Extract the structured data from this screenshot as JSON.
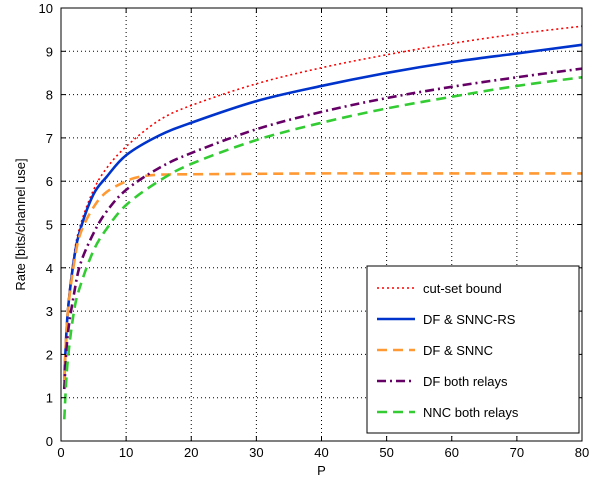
{
  "chart_data": {
    "type": "line",
    "title": "",
    "xlabel": "P",
    "ylabel": "Rate [bits/channel use]",
    "xlim": [
      0,
      80
    ],
    "ylim": [
      0,
      10
    ],
    "xticks": [
      "0",
      "10",
      "20",
      "30",
      "40",
      "50",
      "60",
      "70",
      "80"
    ],
    "yticks": [
      "0",
      "1",
      "2",
      "3",
      "4",
      "5",
      "6",
      "7",
      "8",
      "9",
      "10"
    ],
    "grid": true,
    "legend_position": "lower-right",
    "series": [
      {
        "name": "cut-set bound",
        "color": "#ff0000",
        "style": "dotted",
        "x": [
          0.5,
          1,
          2,
          3,
          5,
          7,
          10,
          15,
          20,
          30,
          40,
          50,
          60,
          70,
          80
        ],
        "y": [
          1.4,
          3.0,
          4.3,
          5.0,
          5.8,
          6.3,
          6.8,
          7.4,
          7.75,
          8.25,
          8.62,
          8.92,
          9.18,
          9.4,
          9.58
        ]
      },
      {
        "name": "DF & SNNC-RS",
        "color": "#0033cc",
        "style": "solid",
        "x": [
          0.5,
          1,
          2,
          3,
          5,
          7,
          10,
          15,
          20,
          30,
          40,
          50,
          60,
          70,
          80
        ],
        "y": [
          1.4,
          2.9,
          4.2,
          4.9,
          5.7,
          6.1,
          6.6,
          7.05,
          7.35,
          7.85,
          8.2,
          8.5,
          8.75,
          8.95,
          9.15
        ]
      },
      {
        "name": "DF & SNNC",
        "color": "#ff9933",
        "style": "dashed",
        "x": [
          0.5,
          1,
          2,
          3,
          5,
          7,
          10,
          12,
          15,
          20,
          30,
          40,
          50,
          60,
          70,
          80
        ],
        "y": [
          1.4,
          2.9,
          4.1,
          4.8,
          5.4,
          5.75,
          6.0,
          6.1,
          6.15,
          6.16,
          6.17,
          6.18,
          6.18,
          6.18,
          6.18,
          6.18
        ]
      },
      {
        "name": "DF both relays",
        "color": "#660066",
        "style": "dashdot",
        "x": [
          0.5,
          1,
          2,
          3,
          5,
          7,
          10,
          15,
          20,
          30,
          40,
          50,
          60,
          70,
          80
        ],
        "y": [
          1.2,
          2.4,
          3.4,
          4.1,
          4.8,
          5.3,
          5.8,
          6.3,
          6.65,
          7.2,
          7.6,
          7.92,
          8.18,
          8.4,
          8.6
        ]
      },
      {
        "name": "NNC both relays",
        "color": "#33cc33",
        "style": "dashed",
        "x": [
          0.5,
          1,
          2,
          3,
          5,
          7,
          10,
          15,
          20,
          30,
          40,
          50,
          60,
          70,
          80
        ],
        "y": [
          0.5,
          1.8,
          3.0,
          3.6,
          4.4,
          4.9,
          5.45,
          6.0,
          6.4,
          6.95,
          7.35,
          7.68,
          7.95,
          8.2,
          8.4
        ]
      }
    ]
  },
  "colors": {
    "grid": "#000000",
    "axes": "#000000",
    "background": "#ffffff"
  }
}
